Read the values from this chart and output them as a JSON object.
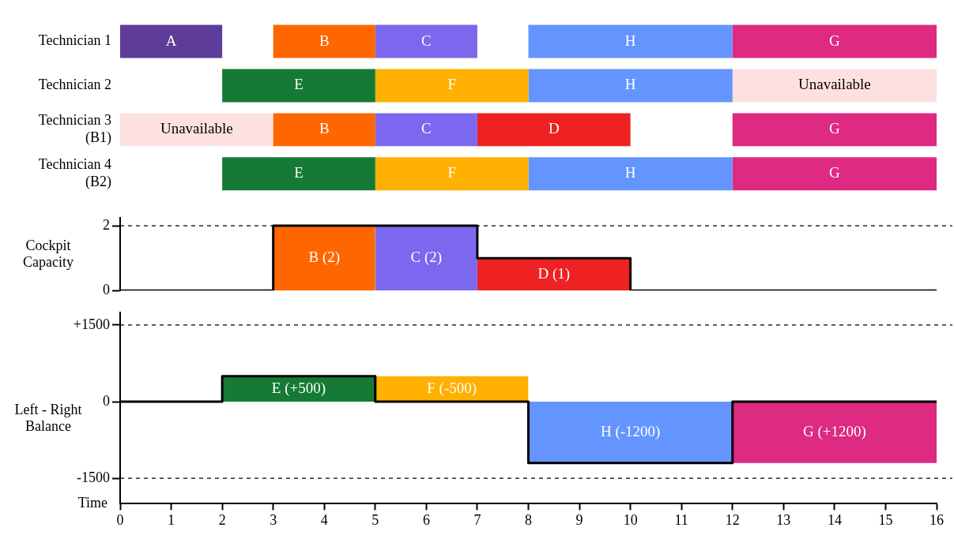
{
  "chart_data": [
    {
      "type": "bar",
      "orientation": "horizontal",
      "categories": [
        "Technician 1",
        "Technician 2",
        "Technician 3\n(B1)",
        "Technician 4\n(B2)"
      ],
      "xlim": [
        0,
        16
      ],
      "tick_labels": "y",
      "grid": false,
      "legend": false,
      "series": [
        {
          "name": "A",
          "color": "#5e3c99",
          "values": [
            2,
            null,
            null,
            null
          ],
          "base": [
            0,
            null,
            null,
            null
          ]
        },
        {
          "name": "B",
          "color": "#ff6600",
          "values": [
            2,
            null,
            2,
            null
          ],
          "base": [
            3,
            null,
            3,
            null
          ]
        },
        {
          "name": "C",
          "color": "#7b68ee",
          "values": [
            2,
            null,
            2,
            null
          ],
          "base": [
            5,
            null,
            5,
            null
          ]
        },
        {
          "name": "D",
          "color": "#ee2222",
          "values": [
            null,
            null,
            3,
            null
          ],
          "base": [
            null,
            null,
            7,
            null
          ]
        },
        {
          "name": "E",
          "color": "#157a35",
          "values": [
            null,
            3,
            null,
            3
          ],
          "base": [
            null,
            2,
            null,
            2
          ]
        },
        {
          "name": "F",
          "color": "#ffb000",
          "values": [
            null,
            3,
            null,
            3
          ],
          "base": [
            null,
            5,
            null,
            5
          ]
        },
        {
          "name": "H",
          "color": "#6495ff",
          "values": [
            4,
            4,
            null,
            4
          ],
          "base": [
            8,
            8,
            null,
            8
          ]
        },
        {
          "name": "G",
          "color": "#de2a80",
          "values": [
            4,
            null,
            4,
            4
          ],
          "base": [
            12,
            null,
            12,
            12
          ]
        },
        {
          "name": "Unavailable",
          "color": "#fde0e0",
          "values": [
            null,
            4,
            3,
            null
          ],
          "base": [
            null,
            12,
            0,
            null
          ]
        }
      ]
    },
    {
      "type": "area",
      "ylabel": "Cockpit Capacity",
      "xlim": [
        0,
        16
      ],
      "ylim": [
        0,
        2.25
      ],
      "yticks": [
        0,
        2
      ],
      "tick_labels": "y",
      "grid": false,
      "legend": false,
      "marker": "none",
      "ref_lines": [
        {
          "axis": "y",
          "value": 2,
          "line_style": "dashed",
          "color": "#000000"
        }
      ],
      "series": [
        {
          "name": "B (2)",
          "color": "#ff6600",
          "x": [
            3,
            5
          ],
          "values": [
            2,
            2
          ]
        },
        {
          "name": "C (2)",
          "color": "#7b68ee",
          "x": [
            5,
            7
          ],
          "values": [
            2,
            2
          ]
        },
        {
          "name": "D (1)",
          "color": "#ee2222",
          "x": [
            7,
            10
          ],
          "values": [
            1,
            1
          ]
        },
        {
          "type": "step",
          "color": "#000000",
          "x": [
            0,
            3,
            7,
            10,
            16
          ],
          "values": [
            0,
            2,
            1,
            0,
            0
          ]
        }
      ]
    },
    {
      "type": "area",
      "ylabel": "Left - Right Balance",
      "xlabel": "Time",
      "xlim": [
        0,
        16
      ],
      "xticks": [
        0,
        1,
        2,
        3,
        4,
        5,
        6,
        7,
        8,
        9,
        10,
        11,
        12,
        13,
        14,
        15,
        16
      ],
      "ylim": [
        -2000,
        1750
      ],
      "yticks": [
        {
          "value": 1500,
          "label": "+1500"
        },
        0,
        -1500
      ],
      "grid": false,
      "legend": false,
      "marker": "none",
      "ref_lines": [
        {
          "axis": "y",
          "value": 1500,
          "line_style": "dashed",
          "color": "#000000"
        },
        {
          "axis": "y",
          "value": -1500,
          "line_style": "dashed",
          "color": "#000000"
        }
      ],
      "series": [
        {
          "name": "E (+500)",
          "color": "#157a35",
          "x": [
            2,
            5
          ],
          "values": [
            500,
            500
          ]
        },
        {
          "name": "F (-500)",
          "color": "#ffb000",
          "x": [
            5,
            8
          ],
          "values": [
            500,
            500
          ]
        },
        {
          "name": "H (-1200)",
          "color": "#6495ff",
          "x": [
            8,
            12
          ],
          "values": [
            -1200,
            -1200
          ]
        },
        {
          "name": "G (+1200)",
          "color": "#de2a80",
          "x": [
            12,
            16
          ],
          "values": [
            -1200,
            -1200
          ]
        },
        {
          "type": "step",
          "color": "#000000",
          "x": [
            0,
            2,
            5,
            8,
            12,
            16
          ],
          "values": [
            0,
            500,
            0,
            -1200,
            0,
            0
          ]
        }
      ]
    }
  ]
}
